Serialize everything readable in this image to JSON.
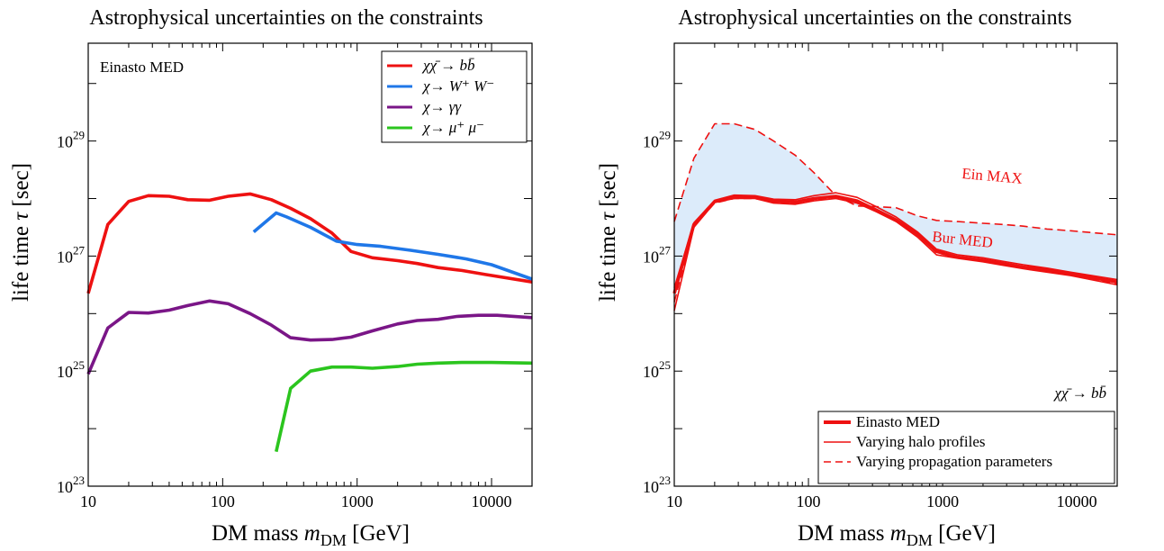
{
  "chart_data": [
    {
      "type": "line",
      "title": "Astrophysical uncertainties on the constraints",
      "xlabel": "DM mass m_DM [GeV]",
      "ylabel": "life time τ [sec]",
      "x_scale": "log",
      "y_scale": "log",
      "xlim": [
        10,
        20000
      ],
      "ylim_log10": [
        23,
        30.7
      ],
      "x_tick_labels": [
        "10",
        "100",
        "1000",
        "10000"
      ],
      "y_tick_labels": [
        {
          "base": "10",
          "exp": "23"
        },
        {
          "base": "10",
          "exp": "25"
        },
        {
          "base": "10",
          "exp": "27"
        },
        {
          "base": "10",
          "exp": "29"
        }
      ],
      "annotation": "Einasto MED",
      "legend_position": "top-right",
      "series": [
        {
          "name": "χχ̄ → bb̄",
          "color": "#ee1111",
          "dash": "solid",
          "log10_lifetime": true,
          "x": [
            10,
            14,
            20,
            28,
            40,
            55,
            80,
            110,
            160,
            230,
            320,
            450,
            650,
            900,
            1300,
            2000,
            2800,
            4000,
            6000,
            9000,
            20000
          ],
          "y": [
            26.35,
            27.55,
            27.95,
            28.05,
            28.04,
            27.98,
            27.97,
            28.04,
            28.08,
            27.98,
            27.83,
            27.65,
            27.4,
            27.08,
            26.97,
            26.92,
            26.87,
            26.8,
            26.75,
            26.68,
            26.55
          ]
        },
        {
          "name": "χ→ W⁺ W⁻",
          "color": "#1f77e8",
          "dash": "solid",
          "log10_lifetime": true,
          "x": [
            170,
            250,
            300,
            450,
            700,
            1000,
            1500,
            2500,
            4000,
            6500,
            10000,
            20000
          ],
          "y": [
            27.42,
            27.75,
            27.68,
            27.5,
            27.26,
            27.2,
            27.17,
            27.1,
            27.03,
            26.95,
            26.85,
            26.6
          ]
        },
        {
          "name": "χ→ γγ",
          "color": "#7a1687",
          "dash": "solid",
          "log10_lifetime": true,
          "x": [
            10,
            14,
            20,
            28,
            40,
            55,
            80,
            110,
            160,
            230,
            320,
            450,
            650,
            900,
            1300,
            2000,
            2800,
            4000,
            5500,
            8000,
            11000,
            20000
          ],
          "y": [
            24.95,
            25.75,
            26.02,
            26.01,
            26.06,
            26.14,
            26.22,
            26.17,
            26.0,
            25.8,
            25.58,
            25.54,
            25.55,
            25.59,
            25.7,
            25.82,
            25.88,
            25.9,
            25.95,
            25.97,
            25.97,
            25.93
          ]
        },
        {
          "name": "χ→ μ⁺ μ⁻",
          "color": "#2bc51e",
          "dash": "solid",
          "log10_lifetime": true,
          "x": [
            250,
            320,
            450,
            650,
            900,
            1300,
            2000,
            2800,
            4000,
            6000,
            10000,
            20000
          ],
          "y": [
            23.6,
            24.7,
            25.0,
            25.07,
            25.07,
            25.05,
            25.08,
            25.12,
            25.14,
            25.15,
            25.15,
            25.14
          ]
        }
      ]
    },
    {
      "type": "line",
      "title": "Astrophysical uncertainties on the constraints",
      "xlabel": "DM mass m_DM [GeV]",
      "ylabel": "life time τ [sec]",
      "x_scale": "log",
      "y_scale": "log",
      "xlim": [
        10,
        20000
      ],
      "ylim_log10": [
        23,
        30.7
      ],
      "x_tick_labels": [
        "10",
        "100",
        "1000",
        "10000"
      ],
      "y_tick_labels": [
        {
          "base": "10",
          "exp": "23"
        },
        {
          "base": "10",
          "exp": "25"
        },
        {
          "base": "10",
          "exp": "27"
        },
        {
          "base": "10",
          "exp": "29"
        }
      ],
      "channel_label": "χχ̄ → bb̄",
      "curve_labels": {
        "max": "Ein MAX",
        "bur": "Bur MED"
      },
      "legend_position": "bottom-right",
      "band_color": "#dcebfa",
      "legend": [
        {
          "name": "Einasto MED",
          "style": "thick"
        },
        {
          "name": "Varying halo profiles",
          "style": "thin"
        },
        {
          "name": "Varying propagation parameters",
          "style": "dashed"
        }
      ],
      "series": [
        {
          "name": "Einasto MED",
          "role": "main",
          "color": "#ee1111",
          "dash": "solid",
          "log10_lifetime": true,
          "x": [
            10,
            14,
            20,
            28,
            40,
            55,
            80,
            110,
            160,
            230,
            320,
            450,
            650,
            900,
            1300,
            2000,
            2800,
            4000,
            6000,
            9000,
            20000
          ],
          "y": [
            26.35,
            27.55,
            27.95,
            28.03,
            28.02,
            27.96,
            27.94,
            28.0,
            28.04,
            27.96,
            27.8,
            27.63,
            27.38,
            27.08,
            26.98,
            26.93,
            26.87,
            26.81,
            26.76,
            26.69,
            26.55
          ]
        },
        {
          "name": "halo profile",
          "role": "halo",
          "color": "#ee1111",
          "dash": "solid",
          "log10_lifetime": true,
          "x": [
            10,
            14,
            20,
            28,
            40,
            55,
            80,
            110,
            160,
            230,
            320,
            450,
            650,
            900,
            1300,
            2000,
            2800,
            4000,
            6000,
            9000,
            20000
          ],
          "y": [
            26.05,
            27.5,
            27.93,
            28.0,
            28.0,
            27.92,
            27.9,
            27.96,
            28.0,
            27.92,
            27.77,
            27.6,
            27.33,
            27.02,
            26.96,
            26.9,
            26.84,
            26.78,
            26.72,
            26.66,
            26.5
          ]
        },
        {
          "name": "halo profile",
          "role": "halo",
          "color": "#ee1111",
          "dash": "solid",
          "log10_lifetime": true,
          "x": [
            10,
            14,
            20,
            28,
            40,
            55,
            80,
            110,
            160,
            230,
            320,
            450,
            650,
            900,
            1300,
            2000,
            2800,
            4000,
            6000,
            9000,
            20000
          ],
          "y": [
            26.45,
            27.58,
            27.97,
            28.06,
            28.05,
            27.99,
            27.98,
            28.05,
            28.1,
            28.02,
            27.86,
            27.68,
            27.42,
            27.12,
            27.02,
            26.97,
            26.91,
            26.85,
            26.79,
            26.72,
            26.59
          ]
        },
        {
          "name": "Ein MAX",
          "role": "prop_max",
          "color": "#ee1111",
          "dash": "dashed",
          "log10_lifetime": true,
          "x": [
            10,
            14,
            20,
            28,
            40,
            55,
            80,
            110,
            160,
            230,
            320,
            450,
            650,
            900,
            1300,
            2000,
            2800,
            4000,
            6000,
            9000,
            20000
          ],
          "y": [
            27.6,
            28.7,
            29.3,
            29.3,
            29.2,
            29.0,
            28.75,
            28.45,
            28.05,
            27.87,
            27.86,
            27.84,
            27.7,
            27.62,
            27.6,
            27.57,
            27.55,
            27.52,
            27.47,
            27.44,
            27.37
          ]
        },
        {
          "name": "prop min",
          "role": "prop_min",
          "color": "#ee1111",
          "dash": "dashed",
          "log10_lifetime": true,
          "x": [
            10,
            14,
            20,
            28,
            40,
            55,
            80,
            110,
            160,
            230,
            320,
            450,
            650,
            900,
            1300,
            2000,
            2800,
            4000,
            6000,
            9000,
            20000
          ],
          "y": [
            26.2,
            27.52,
            27.92,
            28.0,
            28.0,
            27.94,
            27.92,
            27.98,
            28.02,
            27.94,
            27.78,
            27.61,
            27.36,
            27.06,
            26.97,
            26.92,
            26.86,
            26.8,
            26.74,
            26.68,
            26.52
          ]
        }
      ]
    }
  ]
}
